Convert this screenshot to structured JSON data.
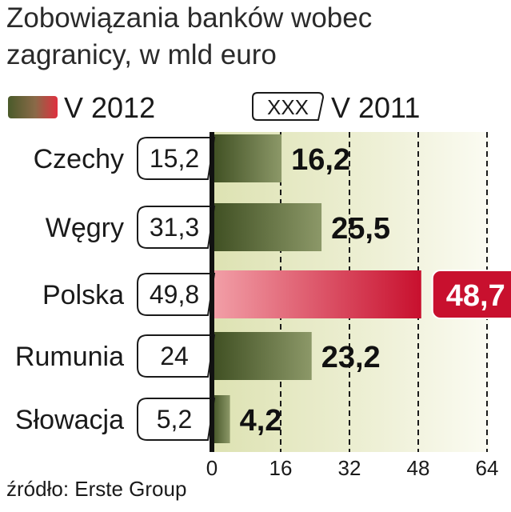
{
  "title_line1": "Zobowiązania banków wobec",
  "title_line2": "zagranicy, w mld euro",
  "legend": {
    "series_2012": "V 2012",
    "series_2011_box": "XXX",
    "series_2011": "V 2011"
  },
  "source": "źródło: Erste Group",
  "colors": {
    "bar_dark": "#4a5a2a",
    "bar_light": "#8c9868",
    "highlight_dark": "#c8102e",
    "highlight_light": "#f08a92",
    "panel_bg": "#eef0d8",
    "panel_bg_strong": "#e2e6bd"
  },
  "chart_data": {
    "type": "bar",
    "orientation": "horizontal",
    "categories": [
      "Czechy",
      "Węgry",
      "Polska",
      "Rumunia",
      "Słowacja"
    ],
    "series": [
      {
        "name": "V 2012",
        "values": [
          16.2,
          25.5,
          48.7,
          23.2,
          4.2
        ],
        "labels": [
          "16,2",
          "25,5",
          "48,7",
          "23,2",
          "4,2"
        ]
      },
      {
        "name": "V 2011",
        "values": [
          15.2,
          31.3,
          49.8,
          24,
          5.2
        ],
        "labels": [
          "15,2",
          "31,3",
          "49,8",
          "24",
          "5,2"
        ]
      }
    ],
    "highlight_category": "Polska",
    "xlim": [
      0,
      64
    ],
    "xticks": [
      0,
      16,
      32,
      48,
      64
    ],
    "grid": "dashed vertical"
  }
}
